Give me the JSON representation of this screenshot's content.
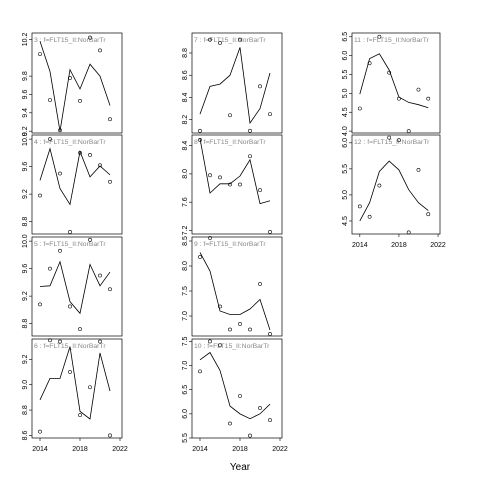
{
  "chart_data": {
    "type": "line",
    "xlabel": "Year",
    "x_ticks": [
      2014,
      2018,
      2022
    ],
    "x_ticks_shown_on": [
      "6",
      "10",
      "12"
    ],
    "line_color": "#000000",
    "title_color": "#888888",
    "panels": [
      {
        "id": "3",
        "title": "3 : f=FLT15_II:NorBarTr",
        "yticks": [
          "9.2",
          "9.4",
          "9.6",
          "9.8",
          "10.2"
        ],
        "ylim": [
          9.18,
          10.27
        ],
        "fit": {
          "x": [
            2014,
            2015,
            2016,
            2017,
            2018,
            2019,
            2020,
            2021
          ],
          "y": [
            10.18,
            9.85,
            9.2,
            9.87,
            9.66,
            9.93,
            9.8,
            9.48
          ]
        },
        "points": {
          "x": [
            2014,
            2015,
            2016,
            2017,
            2018,
            2019,
            2020,
            2021
          ],
          "y": [
            10.04,
            9.54,
            9.21,
            9.78,
            9.53,
            10.22,
            10.08,
            9.33
          ]
        }
      },
      {
        "id": "4",
        "title": "4 : f=FLT15_II:NorBarTr",
        "yticks": [
          "8.8",
          "9.2",
          "9.6",
          "10.0"
        ],
        "ylim": [
          8.62,
          10.06
        ],
        "fit": {
          "x": [
            2014,
            2015,
            2016,
            2017,
            2018,
            2019,
            2020,
            2021
          ],
          "y": [
            9.4,
            9.86,
            9.28,
            9.05,
            9.82,
            9.45,
            9.61,
            9.48
          ]
        },
        "points": {
          "x": [
            2014,
            2015,
            2016,
            2017,
            2018,
            2019,
            2020,
            2021
          ],
          "y": [
            9.18,
            10.0,
            9.5,
            8.65,
            9.8,
            9.77,
            9.62,
            9.38
          ]
        }
      },
      {
        "id": "5",
        "title": "5 : f=FLT15_II:NorBarTr",
        "yticks": [
          "8.8",
          "9.2",
          "9.6",
          "10.0"
        ],
        "ylim": [
          8.62,
          10.06
        ],
        "fit": {
          "x": [
            2014,
            2015,
            2016,
            2017,
            2018,
            2019,
            2020,
            2021
          ],
          "y": [
            9.34,
            9.35,
            9.7,
            9.12,
            8.95,
            9.66,
            9.35,
            9.55
          ]
        },
        "points": {
          "x": [
            2014,
            2015,
            2016,
            2017,
            2018,
            2019,
            2020,
            2021
          ],
          "y": [
            9.08,
            9.6,
            9.86,
            9.05,
            8.72,
            10.02,
            9.5,
            9.3
          ]
        }
      },
      {
        "id": "6",
        "title": "6 : f=FLT15_II:NorBarTr",
        "yticks": [
          "8.6",
          "8.8",
          "9.0",
          "9.2"
        ],
        "ylim": [
          8.58,
          9.36
        ],
        "fit": {
          "x": [
            2014,
            2015,
            2016,
            2017,
            2018,
            2019,
            2020,
            2021
          ],
          "y": [
            8.88,
            9.05,
            9.05,
            9.3,
            8.79,
            8.73,
            9.25,
            8.95
          ]
        },
        "points": {
          "x": [
            2014,
            2015,
            2016,
            2017,
            2018,
            2019,
            2020,
            2021
          ],
          "y": [
            8.63,
            9.35,
            9.34,
            9.1,
            8.76,
            8.98,
            9.34,
            8.6
          ]
        }
      },
      {
        "id": "7",
        "title": "7 : f=FLT15_II:NorBarTr",
        "yticks": [
          "8.2",
          "8.4",
          "8.6",
          "8.8"
        ],
        "ylim": [
          8.08,
          8.98
        ],
        "fit": {
          "x": [
            2014,
            2015,
            2016,
            2017,
            2018,
            2019,
            2020,
            2021
          ],
          "y": [
            8.25,
            8.5,
            8.52,
            8.6,
            8.85,
            8.17,
            8.3,
            8.62
          ]
        },
        "points": {
          "x": [
            2014,
            2015,
            2016,
            2017,
            2018,
            2019,
            2020,
            2021
          ],
          "y": [
            8.1,
            8.92,
            8.89,
            8.24,
            8.92,
            8.1,
            8.5,
            8.25
          ]
        }
      },
      {
        "id": "8",
        "title": "8 : f=FLT15_II:NorBarTr",
        "yticks": [
          "7.2",
          "7.6",
          "8.0",
          "8.4"
        ],
        "ylim": [
          7.15,
          8.55
        ],
        "fit": {
          "x": [
            2014,
            2015,
            2016,
            2017,
            2018,
            2019,
            2020,
            2021
          ],
          "y": [
            8.5,
            7.73,
            7.86,
            7.86,
            7.97,
            8.2,
            7.58,
            7.62
          ]
        },
        "points": {
          "x": [
            2014,
            2015,
            2016,
            2017,
            2018,
            2019,
            2020,
            2021
          ],
          "y": [
            8.48,
            7.98,
            7.95,
            7.85,
            7.85,
            8.25,
            7.77,
            7.18
          ]
        }
      },
      {
        "id": "9",
        "title": "9 : f=FLT15_II:NorBarTr",
        "yticks": [
          "7.0",
          "7.5",
          "8.0",
          "8.5"
        ],
        "ylim": [
          6.6,
          8.58
        ],
        "fit": {
          "x": [
            2014,
            2015,
            2016,
            2017,
            2018,
            2019,
            2020,
            2021
          ],
          "y": [
            8.27,
            7.9,
            7.1,
            7.03,
            7.03,
            7.14,
            7.33,
            6.72
          ]
        },
        "points": {
          "x": [
            2014,
            2015,
            2016,
            2017,
            2018,
            2019,
            2020,
            2021
          ],
          "y": [
            8.18,
            8.56,
            7.19,
            6.73,
            6.84,
            6.73,
            7.64,
            6.64
          ]
        }
      },
      {
        "id": "10",
        "title": "10 : f=FLT15_II:NorBarTr",
        "yticks": [
          "5.5",
          "6.0",
          "6.5",
          "7.0",
          "7.5"
        ],
        "ylim": [
          5.5,
          7.55
        ],
        "fit": {
          "x": [
            2014,
            2015,
            2016,
            2017,
            2018,
            2019,
            2020,
            2021
          ],
          "y": [
            7.12,
            7.27,
            6.9,
            6.16,
            6.0,
            5.9,
            6.0,
            6.2
          ]
        },
        "points": {
          "x": [
            2014,
            2015,
            2016,
            2017,
            2018,
            2019,
            2020,
            2021
          ],
          "y": [
            6.88,
            7.5,
            7.42,
            5.8,
            6.37,
            5.55,
            6.12,
            5.87
          ]
        }
      },
      {
        "id": "11",
        "title": "11 : f=FLT15_II:NorBarTr",
        "yticks": [
          "4.0",
          "4.5",
          "5.0",
          "5.5",
          "6.0",
          "6.5"
        ],
        "ylim": [
          3.95,
          6.6
        ],
        "fit": {
          "x": [
            2014,
            2015,
            2016,
            2017,
            2018,
            2019,
            2020,
            2021
          ],
          "y": [
            4.98,
            5.92,
            6.05,
            5.62,
            4.9,
            4.76,
            4.7,
            4.62
          ]
        },
        "points": {
          "x": [
            2014,
            2015,
            2016,
            2017,
            2018,
            2019,
            2020,
            2021
          ],
          "y": [
            4.6,
            5.8,
            6.5,
            5.55,
            4.86,
            4.0,
            5.1,
            4.86
          ]
        }
      },
      {
        "id": "12",
        "title": "12 : f=FLT15_II:NorBarTr",
        "yticks": [
          "4.5",
          "5.0",
          "5.5",
          "6.0"
        ],
        "ylim": [
          4.25,
          6.15
        ],
        "fit": {
          "x": [
            2014,
            2015,
            2016,
            2017,
            2018,
            2019,
            2020,
            2021
          ],
          "y": [
            4.5,
            4.85,
            5.45,
            5.65,
            5.48,
            5.1,
            4.85,
            4.7
          ]
        },
        "points": {
          "x": [
            2014,
            2015,
            2016,
            2017,
            2018,
            2019,
            2020,
            2021
          ],
          "y": [
            4.78,
            4.58,
            5.18,
            6.1,
            6.05,
            4.28,
            5.48,
            4.63
          ]
        }
      }
    ]
  }
}
